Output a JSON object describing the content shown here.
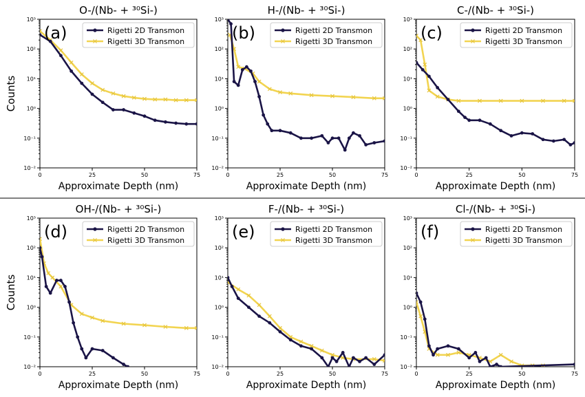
{
  "colors": {
    "series_2d": "#1a1446",
    "series_3d": "#f2d450"
  },
  "chart_data": [
    {
      "type": "line",
      "panel_label": "(a)",
      "title": "O-/(Nb- + ³⁰Si-)",
      "xlabel": "Approximate Depth (nm)",
      "ylabel": "Counts",
      "xlim": [
        0,
        75
      ],
      "ylim": [
        0.01,
        1000
      ],
      "yscale": "log",
      "xticks": [
        0,
        25,
        50,
        75
      ],
      "xtick_labels": [
        "0",
        "25",
        "50",
        "75"
      ],
      "yticks": [
        0.01,
        0.1,
        1,
        10,
        100,
        1000
      ],
      "ytick_labels": [
        "10⁻²",
        "10⁻¹",
        "10⁰",
        "10¹",
        "10²",
        "10³"
      ],
      "legend": "top-right",
      "series": [
        {
          "name": "Rigetti 2D Transmon",
          "x": [
            0,
            5,
            10,
            15,
            20,
            25,
            30,
            35,
            40,
            45,
            50,
            55,
            60,
            65,
            70,
            75
          ],
          "y": [
            300,
            180,
            60,
            18,
            7,
            3,
            1.6,
            0.9,
            0.9,
            0.7,
            0.55,
            0.4,
            0.35,
            0.32,
            0.3,
            0.3
          ]
        },
        {
          "name": "Rigetti 3D Transmon",
          "x": [
            0,
            5,
            10,
            15,
            20,
            25,
            30,
            35,
            40,
            45,
            50,
            55,
            60,
            65,
            70,
            75
          ],
          "y": [
            400,
            200,
            90,
            35,
            14,
            7,
            4.2,
            3.2,
            2.6,
            2.3,
            2.1,
            2.0,
            2.0,
            1.9,
            1.9,
            1.9
          ]
        }
      ]
    },
    {
      "type": "line",
      "panel_label": "(b)",
      "title": "H-/(Nb- + ³⁰Si-)",
      "xlabel": "Approximate Depth (nm)",
      "ylabel": "",
      "xlim": [
        0,
        75
      ],
      "ylim": [
        0.01,
        1000
      ],
      "yscale": "log",
      "xticks": [
        0,
        25,
        50,
        75
      ],
      "xtick_labels": [
        "0",
        "25",
        "50",
        "75"
      ],
      "yticks": [
        0.01,
        0.1,
        1,
        10,
        100,
        1000
      ],
      "ytick_labels": [
        "10⁻²",
        "10⁻¹",
        "10⁰",
        "10¹",
        "10²",
        "10³"
      ],
      "legend": "top-right",
      "series": [
        {
          "name": "Rigetti 2D Transmon",
          "x": [
            0,
            1.5,
            3,
            5,
            7,
            9,
            11,
            13,
            15,
            17,
            19,
            21,
            25,
            30,
            35,
            40,
            45,
            48,
            50,
            53,
            56,
            58,
            60,
            63,
            66,
            70,
            75
          ],
          "y": [
            1000,
            700,
            8,
            6,
            20,
            25,
            18,
            8,
            2.5,
            0.6,
            0.3,
            0.18,
            0.18,
            0.15,
            0.1,
            0.1,
            0.12,
            0.07,
            0.1,
            0.1,
            0.04,
            0.1,
            0.15,
            0.12,
            0.06,
            0.07,
            0.08
          ]
        },
        {
          "name": "Rigetti 3D Transmon",
          "x": [
            1,
            3,
            5,
            8,
            12,
            15,
            20,
            25,
            30,
            40,
            50,
            60,
            70,
            75
          ],
          "y": [
            300,
            100,
            25,
            22,
            15,
            8,
            4.5,
            3.5,
            3.2,
            2.8,
            2.6,
            2.4,
            2.2,
            2.2
          ]
        }
      ]
    },
    {
      "type": "line",
      "panel_label": "(c)",
      "title": "C-/(Nb- + ³⁰Si-)",
      "xlabel": "Approximate Depth (nm)",
      "ylabel": "",
      "xlim": [
        0,
        75
      ],
      "ylim": [
        0.01,
        1000
      ],
      "yscale": "log",
      "xticks": [
        0,
        25,
        50,
        75
      ],
      "xtick_labels": [
        "0",
        "25",
        "50",
        "75"
      ],
      "yticks": [
        0.01,
        0.1,
        1,
        10,
        100,
        1000
      ],
      "ytick_labels": [
        "10⁻²",
        "10⁻¹",
        "10⁰",
        "10¹",
        "10²",
        "10³"
      ],
      "legend": "top-right",
      "series": [
        {
          "name": "Rigetti 2D Transmon",
          "x": [
            0,
            3,
            6,
            10,
            15,
            20,
            23,
            25,
            30,
            35,
            40,
            45,
            50,
            55,
            60,
            65,
            70,
            73,
            75
          ],
          "y": [
            35,
            20,
            12,
            5,
            2,
            0.8,
            0.5,
            0.4,
            0.4,
            0.3,
            0.18,
            0.12,
            0.15,
            0.14,
            0.09,
            0.08,
            0.09,
            0.06,
            0.07
          ]
        },
        {
          "name": "Rigetti 3D Transmon",
          "x": [
            0,
            2,
            4,
            6,
            10,
            15,
            20,
            30,
            40,
            50,
            60,
            70,
            75
          ],
          "y": [
            280,
            200,
            30,
            4,
            2.5,
            2.0,
            1.8,
            1.8,
            1.8,
            1.8,
            1.8,
            1.8,
            1.8
          ]
        }
      ]
    },
    {
      "type": "line",
      "panel_label": "(d)",
      "title": "OH-/(Nb- + ³⁰Si-)",
      "xlabel": "Approximate Depth (nm)",
      "ylabel": "Counts",
      "xlim": [
        0,
        75
      ],
      "ylim": [
        0.01,
        1000
      ],
      "yscale": "log",
      "xticks": [
        0,
        25,
        50,
        75
      ],
      "xtick_labels": [
        "0",
        "25",
        "50",
        "75"
      ],
      "yticks": [
        0.01,
        0.1,
        1,
        10,
        100,
        1000
      ],
      "ytick_labels": [
        "10⁻²",
        "10⁻¹",
        "10⁰",
        "10¹",
        "10²",
        "10³"
      ],
      "legend": "top-right",
      "series": [
        {
          "name": "Rigetti 2D Transmon",
          "x": [
            0,
            1,
            3,
            5,
            8,
            10,
            12,
            14,
            16,
            18,
            20,
            22,
            25,
            30,
            35,
            40,
            42
          ],
          "y": [
            100,
            50,
            5,
            3,
            8,
            8,
            5,
            1.5,
            0.3,
            0.1,
            0.04,
            0.02,
            0.04,
            0.035,
            0.02,
            0.012,
            0.01
          ]
        },
        {
          "name": "Rigetti 3D Transmon",
          "x": [
            0,
            2,
            4,
            6,
            10,
            15,
            20,
            25,
            30,
            40,
            50,
            60,
            70,
            75
          ],
          "y": [
            200,
            30,
            14,
            10,
            5,
            1.2,
            0.6,
            0.45,
            0.35,
            0.28,
            0.25,
            0.22,
            0.2,
            0.2
          ]
        }
      ]
    },
    {
      "type": "line",
      "panel_label": "(e)",
      "title": "F-/(Nb- + ³⁰Si-)",
      "xlabel": "Approximate Depth (nm)",
      "ylabel": "",
      "xlim": [
        0,
        75
      ],
      "ylim": [
        0.01,
        1000
      ],
      "yscale": "log",
      "xticks": [
        0,
        25,
        50,
        75
      ],
      "xtick_labels": [
        "0",
        "25",
        "50",
        "75"
      ],
      "yticks": [
        0.01,
        0.1,
        1,
        10,
        100,
        1000
      ],
      "ytick_labels": [
        "10⁻²",
        "10⁻¹",
        "10⁰",
        "10¹",
        "10²",
        "10³"
      ],
      "legend": "top-right",
      "series": [
        {
          "name": "Rigetti 2D Transmon",
          "x": [
            0,
            2,
            5,
            10,
            15,
            20,
            25,
            30,
            35,
            40,
            45,
            48,
            50,
            52,
            55,
            58,
            60,
            63,
            66,
            70,
            75
          ],
          "y": [
            10,
            5,
            2,
            1,
            0.5,
            0.3,
            0.15,
            0.08,
            0.05,
            0.04,
            0.02,
            0.01,
            0.02,
            0.015,
            0.03,
            0.01,
            0.02,
            0.015,
            0.02,
            0.012,
            0.025
          ]
        },
        {
          "name": "Rigetti 3D Transmon",
          "x": [
            0,
            5,
            10,
            15,
            20,
            25,
            30,
            35,
            40,
            45,
            50,
            55,
            60,
            70,
            75
          ],
          "y": [
            7,
            4,
            2.5,
            1.2,
            0.5,
            0.2,
            0.1,
            0.07,
            0.05,
            0.035,
            0.025,
            0.02,
            0.018,
            0.018,
            0.016
          ]
        }
      ]
    },
    {
      "type": "line",
      "panel_label": "(f)",
      "title": "Cl-/(Nb- + ³⁰Si-)",
      "xlabel": "Approximate Depth (nm)",
      "ylabel": "",
      "xlim": [
        0,
        75
      ],
      "ylim": [
        0.01,
        1000
      ],
      "yscale": "log",
      "xticks": [
        0,
        25,
        50,
        75
      ],
      "xtick_labels": [
        "0",
        "25",
        "50",
        "75"
      ],
      "yticks": [
        0.01,
        0.1,
        1,
        10,
        100,
        1000
      ],
      "ytick_labels": [
        "10⁻²",
        "10⁻¹",
        "10⁰",
        "10¹",
        "10²",
        "10³"
      ],
      "legend": "top-right",
      "series": [
        {
          "name": "Rigetti 2D Transmon",
          "x": [
            0,
            2,
            4,
            6,
            8,
            10,
            15,
            20,
            25,
            28,
            30,
            33,
            35,
            38,
            40,
            75
          ],
          "y": [
            3,
            1.5,
            0.4,
            0.05,
            0.025,
            0.04,
            0.05,
            0.04,
            0.02,
            0.03,
            0.015,
            0.02,
            0.01,
            0.012,
            0.01,
            0.012
          ]
        },
        {
          "name": "Rigetti 3D Transmon",
          "x": [
            0,
            2,
            4,
            6,
            10,
            15,
            20,
            25,
            30,
            35,
            40,
            45,
            50,
            55,
            60
          ],
          "y": [
            1.5,
            0.5,
            0.15,
            0.04,
            0.025,
            0.025,
            0.03,
            0.025,
            0.02,
            0.015,
            0.025,
            0.015,
            0.011,
            0.011,
            0.011
          ]
        }
      ]
    }
  ]
}
